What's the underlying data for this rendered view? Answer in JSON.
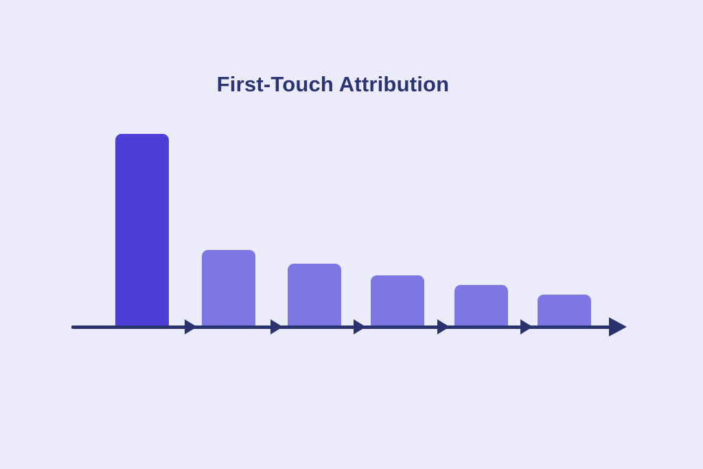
{
  "chart_data": {
    "type": "bar",
    "title": "First-Touch Attribution",
    "subtitle": "",
    "xlabel": "",
    "ylabel": "",
    "categories": [
      "",
      "",
      "",
      "",
      "",
      ""
    ],
    "values": [
      100,
      40,
      33,
      27,
      22,
      17
    ],
    "value_note": "bars unlabeled; heights relative, first touchpoint = 100",
    "ylim": [
      0,
      100
    ],
    "grid": false,
    "legend": false,
    "axis_style": "horizontal timeline arrow with arrowhead separators between bars and terminal arrowhead",
    "colors": {
      "first_bar": "#4C3ED7",
      "other_bars": "#7C77E3",
      "axis": "#2B336F",
      "title_text": "#2B3472",
      "background": "#EBEBF9"
    }
  }
}
